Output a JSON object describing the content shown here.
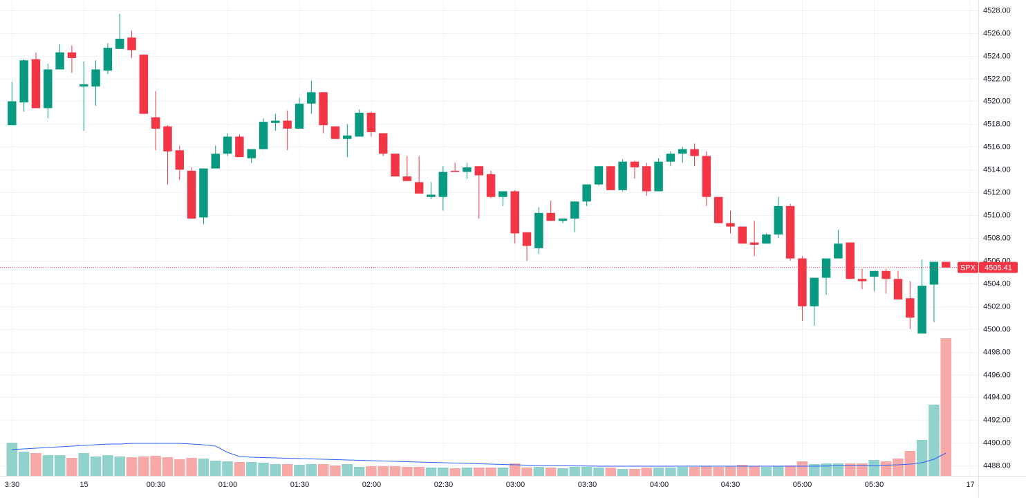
{
  "chart_data": {
    "type": "candlestick",
    "symbol": "SPX",
    "last_price": 4505.41,
    "up_color": "#089981",
    "down_color": "#f23645",
    "volume_up_color": "#92d2cc",
    "volume_down_color": "#f7a9a7",
    "volume_ma_color": "#2962ff",
    "grid": true,
    "xlim": [
      -1,
      80.7
    ],
    "xticks": [
      {
        "value": 0,
        "label": "3:30"
      },
      {
        "value": 6,
        "label": "15"
      },
      {
        "value": 12,
        "label": "00:30"
      },
      {
        "value": 18,
        "label": "01:00"
      },
      {
        "value": 24,
        "label": "01:30"
      },
      {
        "value": 30,
        "label": "02:00"
      },
      {
        "value": 36,
        "label": "02:30"
      },
      {
        "value": 42,
        "label": "03:00"
      },
      {
        "value": 48,
        "label": "03:30"
      },
      {
        "value": 54,
        "label": "04:00"
      },
      {
        "value": 60,
        "label": "04:30"
      },
      {
        "value": 66,
        "label": "05:00"
      },
      {
        "value": 72,
        "label": "05:30"
      },
      {
        "value": 80,
        "label": "17"
      }
    ],
    "ylim": [
      4487.1,
      4528.9
    ],
    "yticks": [
      {
        "value": 4488,
        "label": "4488.00"
      },
      {
        "value": 4490,
        "label": "4490.00"
      },
      {
        "value": 4492,
        "label": "4492.00"
      },
      {
        "value": 4494,
        "label": "4494.00"
      },
      {
        "value": 4496,
        "label": "4496.00"
      },
      {
        "value": 4498,
        "label": "4498.00"
      },
      {
        "value": 4500,
        "label": "4500.00"
      },
      {
        "value": 4502,
        "label": "4502.00"
      },
      {
        "value": 4504,
        "label": "4504.00"
      },
      {
        "value": 4506,
        "label": "4506.00"
      },
      {
        "value": 4508,
        "label": "4508.00"
      },
      {
        "value": 4510,
        "label": "4510.00"
      },
      {
        "value": 4512,
        "label": "4512.00"
      },
      {
        "value": 4514,
        "label": "4514.00"
      },
      {
        "value": 4516,
        "label": "4516.00"
      },
      {
        "value": 4518,
        "label": "4518.00"
      },
      {
        "value": 4520,
        "label": "4520.00"
      },
      {
        "value": 4522,
        "label": "4522.00"
      },
      {
        "value": 4524,
        "label": "4524.00"
      },
      {
        "value": 4526,
        "label": "4526.00"
      },
      {
        "value": 4528,
        "label": "4528.00"
      }
    ],
    "open": [
      4517.9,
      4519.9,
      4523.7,
      4519.4,
      4522.8,
      4524.3,
      4521.3,
      4521.3,
      4522.7,
      4524.6,
      4525.6,
      4524.1,
      4518.6,
      4517.8,
      4515.7,
      4513.9,
      4509.8,
      4514.1,
      4515.4,
      4516.9,
      4515.0,
      4515.8,
      4518.1,
      4518.3,
      4517.6,
      4519.8,
      4520.8,
      4517.8,
      4516.7,
      4516.9,
      4519.0,
      4517.2,
      4515.4,
      4513.4,
      4512.9,
      4511.6,
      4511.6,
      4513.9,
      4513.8,
      4514.3,
      4513.6,
      4511.6,
      4512.1,
      4508.5,
      4507.1,
      4510.2,
      4509.5,
      4509.7,
      4511.2,
      4512.7,
      4514.3,
      4512.2,
      4514.7,
      4514.3,
      4512.1,
      4514.7,
      4515.4,
      4515.8,
      4515.2,
      4511.6,
      4509.3,
      4509.0,
      4507.6,
      4507.5,
      4508.3,
      4510.8,
      4506.2,
      4502.0,
      4504.5,
      4506.2,
      4507.6,
      4504.4,
      4504.6,
      4505.1,
      4504.4,
      4502.7,
      4499.6,
      4503.9,
      4505.9
    ],
    "high": [
      4521.7,
      4523.7,
      4524.3,
      4523.3,
      4525.0,
      4524.9,
      4523.5,
      4523.6,
      4525.1,
      4527.7,
      4526.2,
      4524.1,
      4520.9,
      4517.9,
      4516.1,
      4514.2,
      4514.1,
      4516.1,
      4517.2,
      4517.1,
      4515.8,
      4518.5,
      4518.9,
      4519.2,
      4520.3,
      4521.8,
      4520.8,
      4517.8,
      4518.0,
      4519.3,
      4519.1,
      4517.2,
      4515.4,
      4515.2,
      4515.2,
      4512.9,
      4514.3,
      4514.6,
      4514.6,
      4514.3,
      4513.9,
      4512.1,
      4512.2,
      4508.5,
      4510.7,
      4511.3,
      4509.7,
      4511.2,
      4512.7,
      4514.3,
      4514.3,
      4514.9,
      4514.8,
      4514.6,
      4515.0,
      4515.6,
      4516.0,
      4516.3,
      4515.6,
      4511.6,
      4510.4,
      4509.0,
      4509.5,
      4508.4,
      4511.6,
      4511.0,
      4506.4,
      4504.5,
      4506.2,
      4508.7,
      4507.6,
      4505.3,
      4505.1,
      4505.3,
      4505.1,
      4504.2,
      4506.1,
      4505.9,
      4505.9
    ],
    "low": [
      4517.9,
      4519.1,
      4519.4,
      4518.5,
      4522.8,
      4522.5,
      4517.4,
      4519.6,
      4522.4,
      4524.6,
      4523.8,
      4518.9,
      4515.7,
      4512.7,
      4513.1,
      4509.7,
      4509.2,
      4514.1,
      4515.2,
      4515.1,
      4514.6,
      4515.8,
      4517.4,
      4515.7,
      4517.6,
      4518.9,
      4517.2,
      4516.7,
      4515.1,
      4516.9,
      4516.9,
      4515.2,
      4513.4,
      4513.0,
      4511.9,
      4511.4,
      4510.4,
      4513.8,
      4513.2,
      4509.7,
      4511.5,
      4510.8,
      4507.5,
      4506.0,
      4506.6,
      4509.5,
      4509.3,
      4508.5,
      4510.8,
      4512.6,
      4512.2,
      4512.1,
      4513.2,
      4511.7,
      4512.1,
      4514.3,
      4514.6,
      4514.3,
      4510.8,
      4509.3,
      4508.4,
      4507.5,
      4506.4,
      4507.5,
      4508.0,
      4506.0,
      4500.7,
      4500.3,
      4503.0,
      4506.2,
      4504.4,
      4503.5,
      4503.3,
      4503.1,
      4502.6,
      4500.0,
      4499.6,
      4500.6,
      4505.4
    ],
    "close": [
      4520.0,
      4523.6,
      4519.4,
      4522.8,
      4524.3,
      4523.8,
      4521.5,
      4522.8,
      4524.7,
      4525.5,
      4524.5,
      4518.9,
      4517.6,
      4515.6,
      4514.0,
      4509.7,
      4514.1,
      4515.4,
      4516.9,
      4515.1,
      4515.8,
      4518.2,
      4518.3,
      4517.6,
      4519.8,
      4520.8,
      4517.9,
      4516.7,
      4517.0,
      4519.0,
      4517.3,
      4515.4,
      4513.4,
      4513.0,
      4511.9,
      4511.8,
      4513.8,
      4513.8,
      4514.2,
      4513.5,
      4511.6,
      4512.1,
      4508.4,
      4507.3,
      4510.2,
      4509.5,
      4509.7,
      4511.2,
      4512.7,
      4514.3,
      4512.2,
      4514.7,
      4514.2,
      4512.1,
      4514.7,
      4515.4,
      4515.8,
      4515.2,
      4511.6,
      4509.3,
      4509.0,
      4507.5,
      4507.4,
      4508.3,
      4510.8,
      4506.2,
      4502.0,
      4504.5,
      4506.2,
      4507.5,
      4504.4,
      4504.2,
      4505.1,
      4504.4,
      4502.6,
      4501.0,
      4503.8,
      4505.9,
      4505.4
    ],
    "volume_ylim": [
      0,
      688
    ],
    "volume": [
      48,
      35,
      33,
      30,
      30,
      26,
      33,
      28,
      30,
      28,
      27,
      28,
      29,
      27,
      24,
      26,
      25,
      22,
      21,
      20,
      20,
      19,
      17,
      17,
      16,
      17,
      17,
      15,
      17,
      13,
      14,
      14,
      14,
      13,
      13,
      12,
      12,
      11,
      12,
      12,
      12,
      12,
      18,
      12,
      13,
      12,
      11,
      13,
      13,
      12,
      12,
      10,
      10,
      12,
      12,
      12,
      13,
      13,
      14,
      13,
      14,
      16,
      14,
      13,
      14,
      15,
      21,
      17,
      18,
      18,
      18,
      18,
      23,
      21,
      25,
      36,
      52,
      103,
      199
    ],
    "volume_ma": [
      38,
      39,
      40,
      41,
      42,
      43,
      44,
      45,
      46,
      46,
      47,
      47,
      47,
      47,
      47,
      46,
      45,
      43,
      34,
      28,
      27,
      26.5,
      26,
      25.5,
      25,
      24.5,
      24,
      23.5,
      23,
      22.5,
      22,
      21.5,
      21,
      20.5,
      20,
      19.5,
      19,
      18.5,
      18,
      17.5,
      17,
      16.5,
      16,
      15.5,
      15,
      14.8,
      14.6,
      14.4,
      14.2,
      14,
      14,
      14,
      14,
      14,
      14,
      14,
      14,
      14,
      14,
      14,
      14,
      14,
      14,
      14,
      14,
      14,
      14,
      14,
      14.2,
      14.4,
      14.6,
      14.8,
      15,
      15.5,
      16,
      17,
      19,
      24,
      33
    ]
  }
}
